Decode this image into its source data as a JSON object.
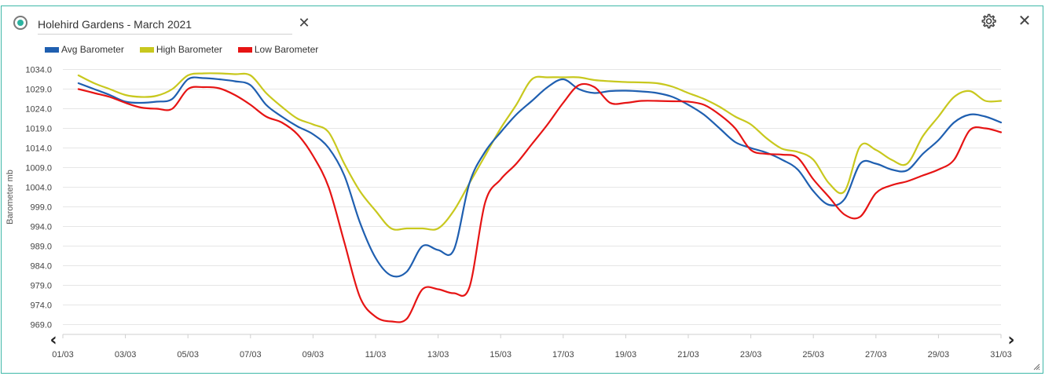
{
  "header": {
    "title_value": "Holehird Gardens - March 2021",
    "clear_icon": "close-icon",
    "settings_icon": "gear-icon",
    "close_icon": "close-icon"
  },
  "colors": {
    "avg": "#1f5fb0",
    "high": "#c8c81e",
    "low": "#e61414",
    "frame": "#3fb8a8",
    "grid": "#e6e6e6"
  },
  "nav": {
    "prev_glyph": "‹",
    "next_glyph": "›"
  },
  "chart_data": {
    "type": "line",
    "title": "",
    "xlabel": "",
    "ylabel": "Barometer mb",
    "ylim": [
      966.5,
      1036.5
    ],
    "xlim": [
      1,
      31
    ],
    "grid": true,
    "legend_position": "top-left",
    "y_ticks": [
      "1034.0",
      "1029.0",
      "1024.0",
      "1019.0",
      "1014.0",
      "1009.0",
      "1004.0",
      "999.0",
      "994.0",
      "989.0",
      "984.0",
      "979.0",
      "974.0",
      "969.0"
    ],
    "x_ticks": [
      "01/03",
      "03/03",
      "05/03",
      "07/03",
      "09/03",
      "11/03",
      "13/03",
      "15/03",
      "17/03",
      "19/03",
      "21/03",
      "23/03",
      "25/03",
      "27/03",
      "29/03",
      "31/03"
    ],
    "x_tick_days": [
      1,
      3,
      5,
      7,
      9,
      11,
      13,
      15,
      17,
      19,
      21,
      23,
      25,
      27,
      29,
      31
    ],
    "x": [
      1.5,
      2.0,
      2.5,
      3.0,
      3.5,
      4.0,
      4.5,
      5.0,
      5.5,
      6.0,
      6.5,
      7.0,
      7.5,
      8.0,
      8.5,
      9.0,
      9.5,
      10.0,
      10.5,
      11.0,
      11.5,
      12.0,
      12.5,
      13.0,
      13.5,
      14.0,
      14.5,
      15.0,
      15.5,
      16.0,
      16.5,
      17.0,
      17.5,
      18.0,
      18.5,
      19.0,
      19.5,
      20.0,
      20.5,
      21.0,
      21.5,
      22.0,
      22.5,
      23.0,
      23.5,
      24.0,
      24.5,
      25.0,
      25.5,
      26.0,
      26.5,
      27.0,
      27.5,
      28.0,
      28.5,
      29.0,
      29.5,
      30.0,
      30.5,
      31.0
    ],
    "series": [
      {
        "name": "Avg Barometer",
        "values": [
          1030.5,
          1029.0,
          1027.5,
          1025.8,
          1025.5,
          1025.8,
          1026.5,
          1031.5,
          1031.8,
          1031.5,
          1031.0,
          1030.0,
          1025.0,
          1022.0,
          1019.5,
          1017.5,
          1014.0,
          1007.0,
          995.0,
          986.0,
          981.5,
          982.5,
          989.0,
          988.0,
          988.0,
          1005.0,
          1013.0,
          1018.0,
          1022.5,
          1026.0,
          1029.5,
          1031.5,
          1029.0,
          1028.0,
          1028.5,
          1028.6,
          1028.4,
          1028.0,
          1027.0,
          1025.0,
          1022.5,
          1019.0,
          1015.5,
          1014.0,
          1012.8,
          1011.0,
          1008.5,
          1003.0,
          999.5,
          1001.0,
          1010.0,
          1010.0,
          1008.5,
          1008.3,
          1012.5,
          1016.0,
          1020.5,
          1022.5,
          1022.0,
          1020.5
        ]
      },
      {
        "name": "High Barometer",
        "values": [
          1032.5,
          1030.5,
          1029.0,
          1027.5,
          1027.0,
          1027.3,
          1029.0,
          1032.5,
          1033.0,
          1033.0,
          1032.8,
          1032.5,
          1028.0,
          1024.5,
          1021.5,
          1020.0,
          1018.0,
          1010.0,
          1003.0,
          998.0,
          993.5,
          993.5,
          993.5,
          993.5,
          998.0,
          1005.0,
          1012.0,
          1019.0,
          1025.0,
          1031.5,
          1032.0,
          1032.0,
          1032.0,
          1031.3,
          1031.0,
          1030.8,
          1030.7,
          1030.5,
          1029.6,
          1028.0,
          1026.5,
          1024.5,
          1022.0,
          1020.0,
          1016.5,
          1013.8,
          1013.0,
          1011.0,
          1005.0,
          1003.0,
          1014.5,
          1013.5,
          1011.0,
          1010.0,
          1017.0,
          1022.0,
          1027.0,
          1028.5,
          1026.0,
          1026.0
        ]
      },
      {
        "name": "Low Barometer",
        "values": [
          1029.0,
          1028.0,
          1027.0,
          1025.5,
          1024.3,
          1024.0,
          1024.0,
          1029.0,
          1029.5,
          1029.2,
          1027.5,
          1025.0,
          1022.0,
          1020.5,
          1017.5,
          1012.0,
          1004.0,
          990.0,
          976.0,
          971.0,
          969.8,
          970.5,
          978.0,
          978.0,
          977.0,
          978.5,
          1000.0,
          1006.0,
          1010.0,
          1015.0,
          1020.0,
          1025.5,
          1030.0,
          1029.5,
          1025.5,
          1025.5,
          1026.0,
          1026.0,
          1025.9,
          1025.8,
          1025.0,
          1022.5,
          1019.0,
          1013.5,
          1012.5,
          1012.3,
          1011.5,
          1006.0,
          1001.5,
          997.0,
          996.5,
          1002.5,
          1004.5,
          1005.5,
          1007.0,
          1008.5,
          1011.0,
          1018.5,
          1019.0,
          1018.0
        ]
      }
    ]
  }
}
